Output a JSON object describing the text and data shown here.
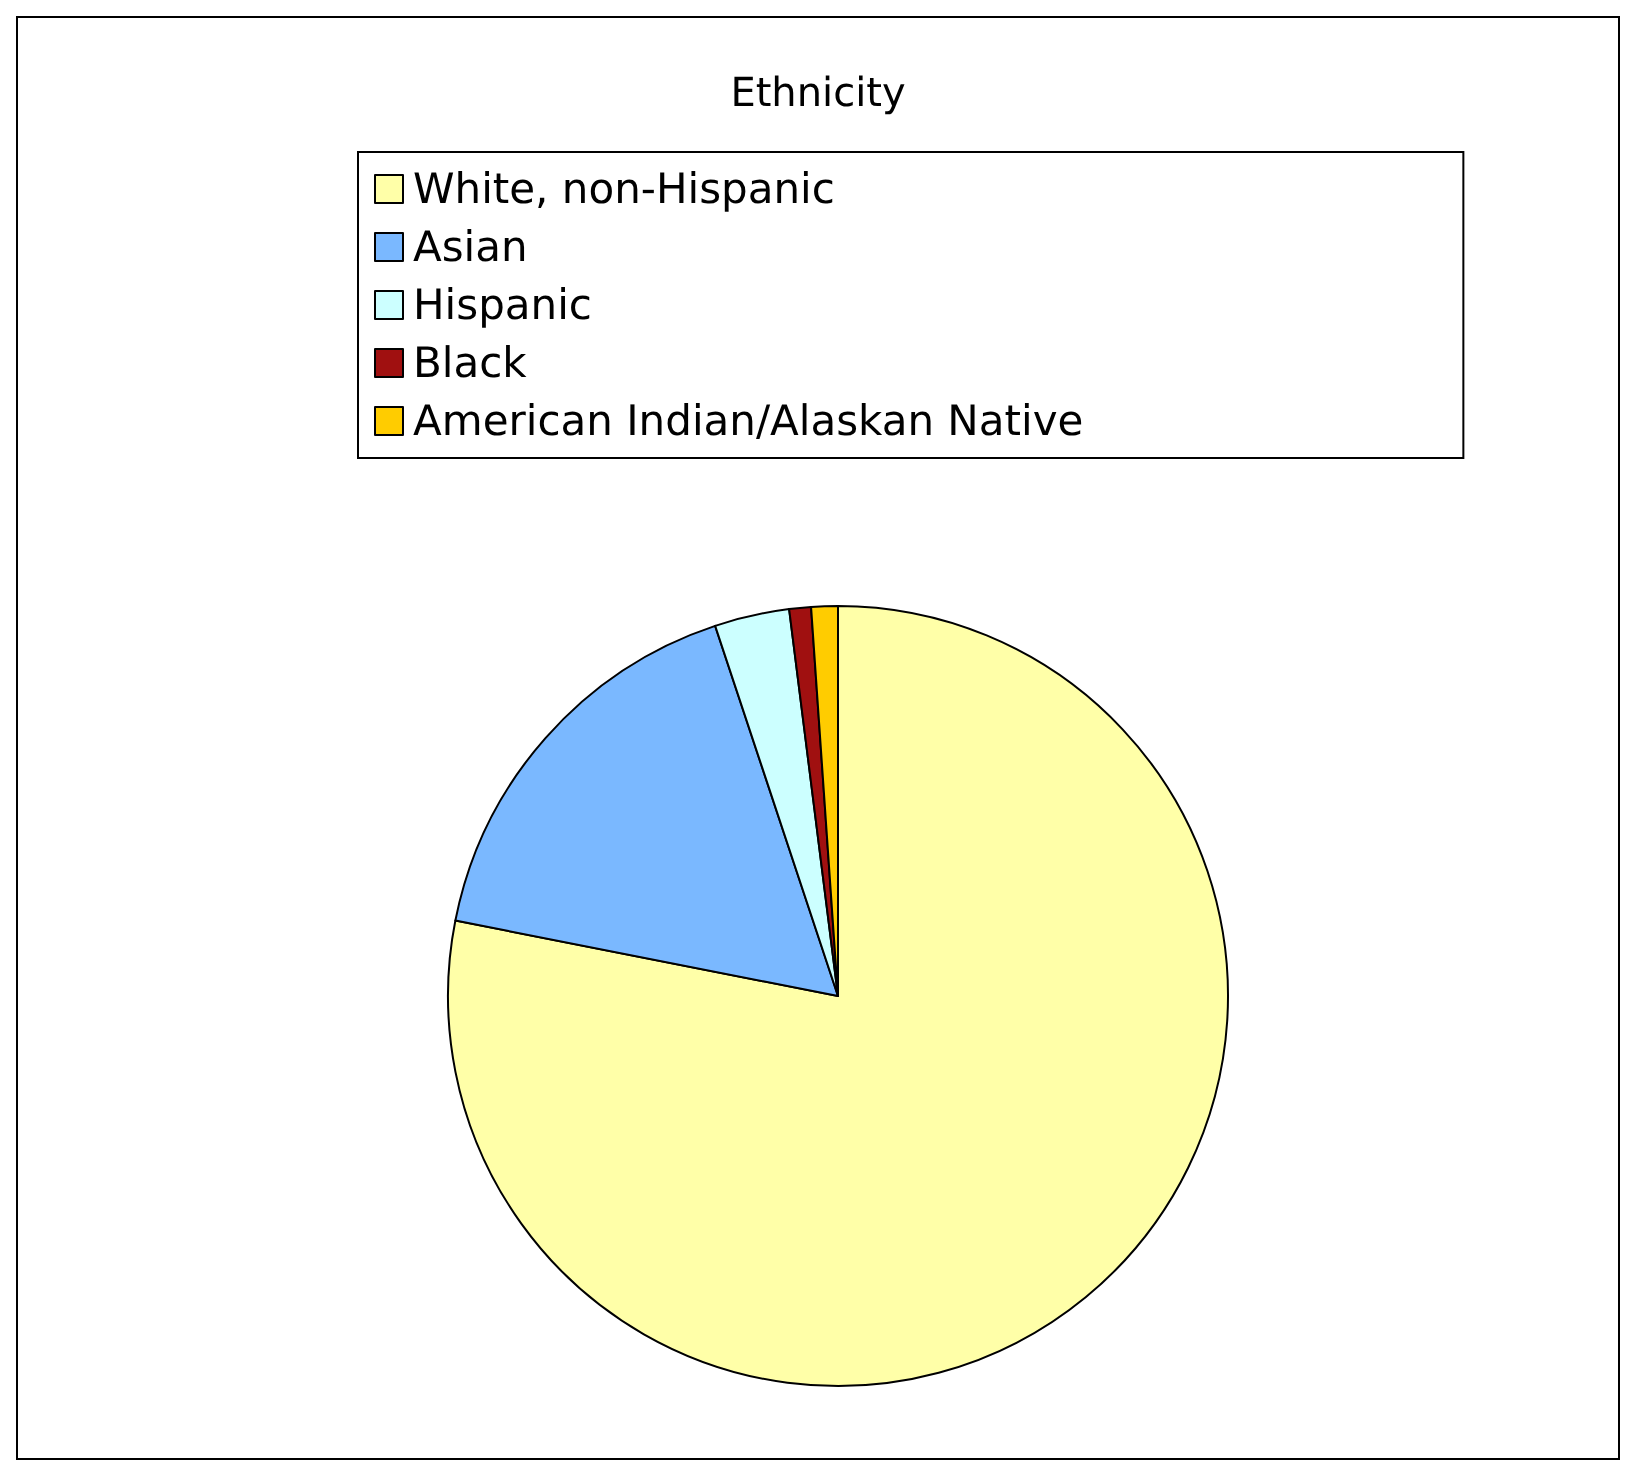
{
  "chart_data": {
    "type": "pie",
    "title": "Ethnicity",
    "categories": [
      "White, non-Hispanic",
      "Asian",
      "Hispanic",
      "Black",
      "American Indian/Alaskan Native"
    ],
    "values": [
      78.1,
      16.8,
      3.1,
      0.9,
      1.1
    ],
    "colors": [
      "#ffffa8",
      "#7ab8ff",
      "#ccffff",
      "#a01010",
      "#ffcc00"
    ],
    "legend": "top"
  }
}
